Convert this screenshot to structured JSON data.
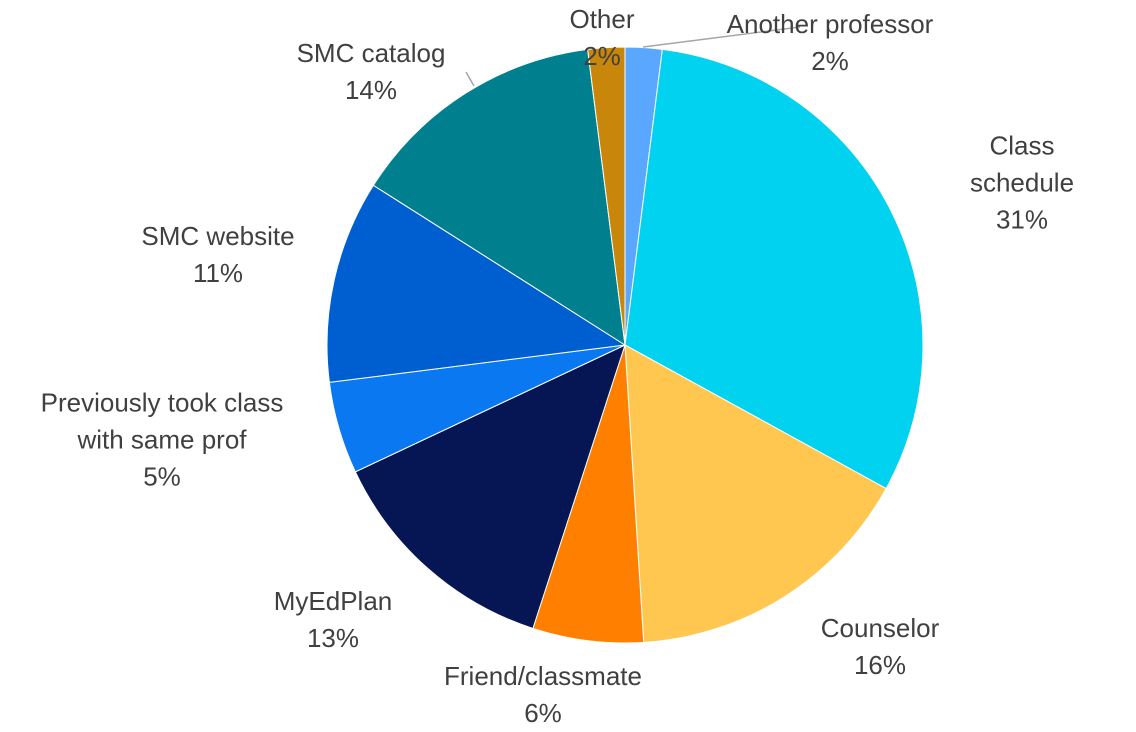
{
  "chart_data": {
    "type": "pie",
    "categories": [
      "Another professor",
      "Class schedule",
      "Counselor",
      "Friend/classmate",
      "MyEdPlan",
      "Previously took class\nwith same prof",
      "SMC website",
      "SMC catalog",
      "Other"
    ],
    "values": [
      2,
      31,
      16,
      6,
      13,
      5,
      11,
      14,
      2
    ],
    "value_labels": [
      "2%",
      "31%",
      "16%",
      "6%",
      "13%",
      "5%",
      "11%",
      "14%",
      "2%"
    ],
    "colors": [
      "#5aa7ff",
      "#00d2f0",
      "#ffc74f",
      "#ff8000",
      "#061654",
      "#0a78f0",
      "#005fd0",
      "#00808f",
      "#c8860a"
    ]
  }
}
